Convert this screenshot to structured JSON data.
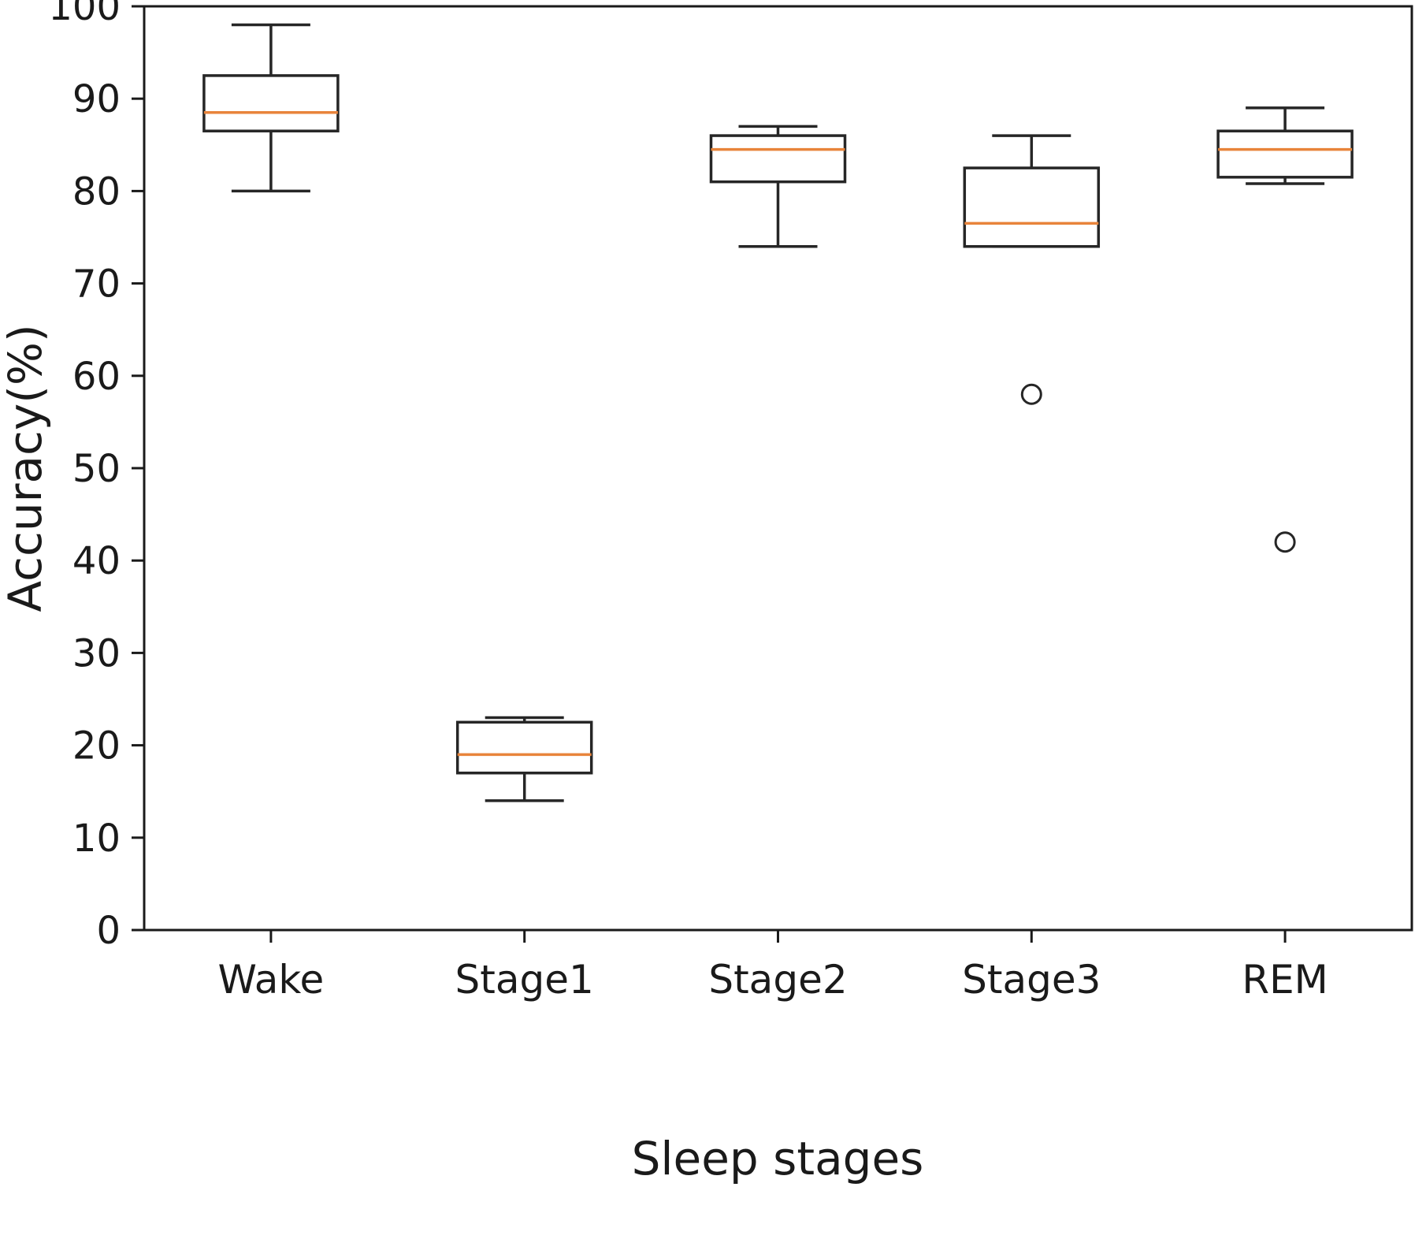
{
  "figure": {
    "background": "#ffffff"
  },
  "chart_data": {
    "type": "boxplot",
    "title": "",
    "xlabel": "Sleep stages",
    "ylabel": "Accuracy(%)",
    "ylim": [
      0,
      100
    ],
    "yticks": [
      0,
      10,
      20,
      30,
      40,
      50,
      60,
      70,
      80,
      90,
      100
    ],
    "categories": [
      "Wake",
      "Stage1",
      "Stage2",
      "Stage3",
      "REM"
    ],
    "series": [
      {
        "name": "Wake",
        "whisker_low": 80,
        "q1": 86.5,
        "median": 88.5,
        "q3": 92.5,
        "whisker_high": 98,
        "outliers": []
      },
      {
        "name": "Stage1",
        "whisker_low": 14,
        "q1": 17,
        "median": 19,
        "q3": 22.5,
        "whisker_high": 23,
        "outliers": []
      },
      {
        "name": "Stage2",
        "whisker_low": 74,
        "q1": 81,
        "median": 84.5,
        "q3": 86,
        "whisker_high": 87,
        "outliers": []
      },
      {
        "name": "Stage3",
        "whisker_low": 74,
        "q1": 74,
        "median": 76.5,
        "q3": 82.5,
        "whisker_high": 86,
        "outliers": [
          58
        ]
      },
      {
        "name": "REM",
        "whisker_low": 80.8,
        "q1": 81.5,
        "median": 84.5,
        "q3": 86.5,
        "whisker_high": 89,
        "outliers": [
          42
        ]
      }
    ],
    "colors": {
      "box_stroke": "#262626",
      "median": "#e8843b",
      "outlier_stroke": "#262626",
      "axis": "#1a1a1a",
      "text": "#1a1a1a"
    },
    "grid": false,
    "legend": "none"
  }
}
